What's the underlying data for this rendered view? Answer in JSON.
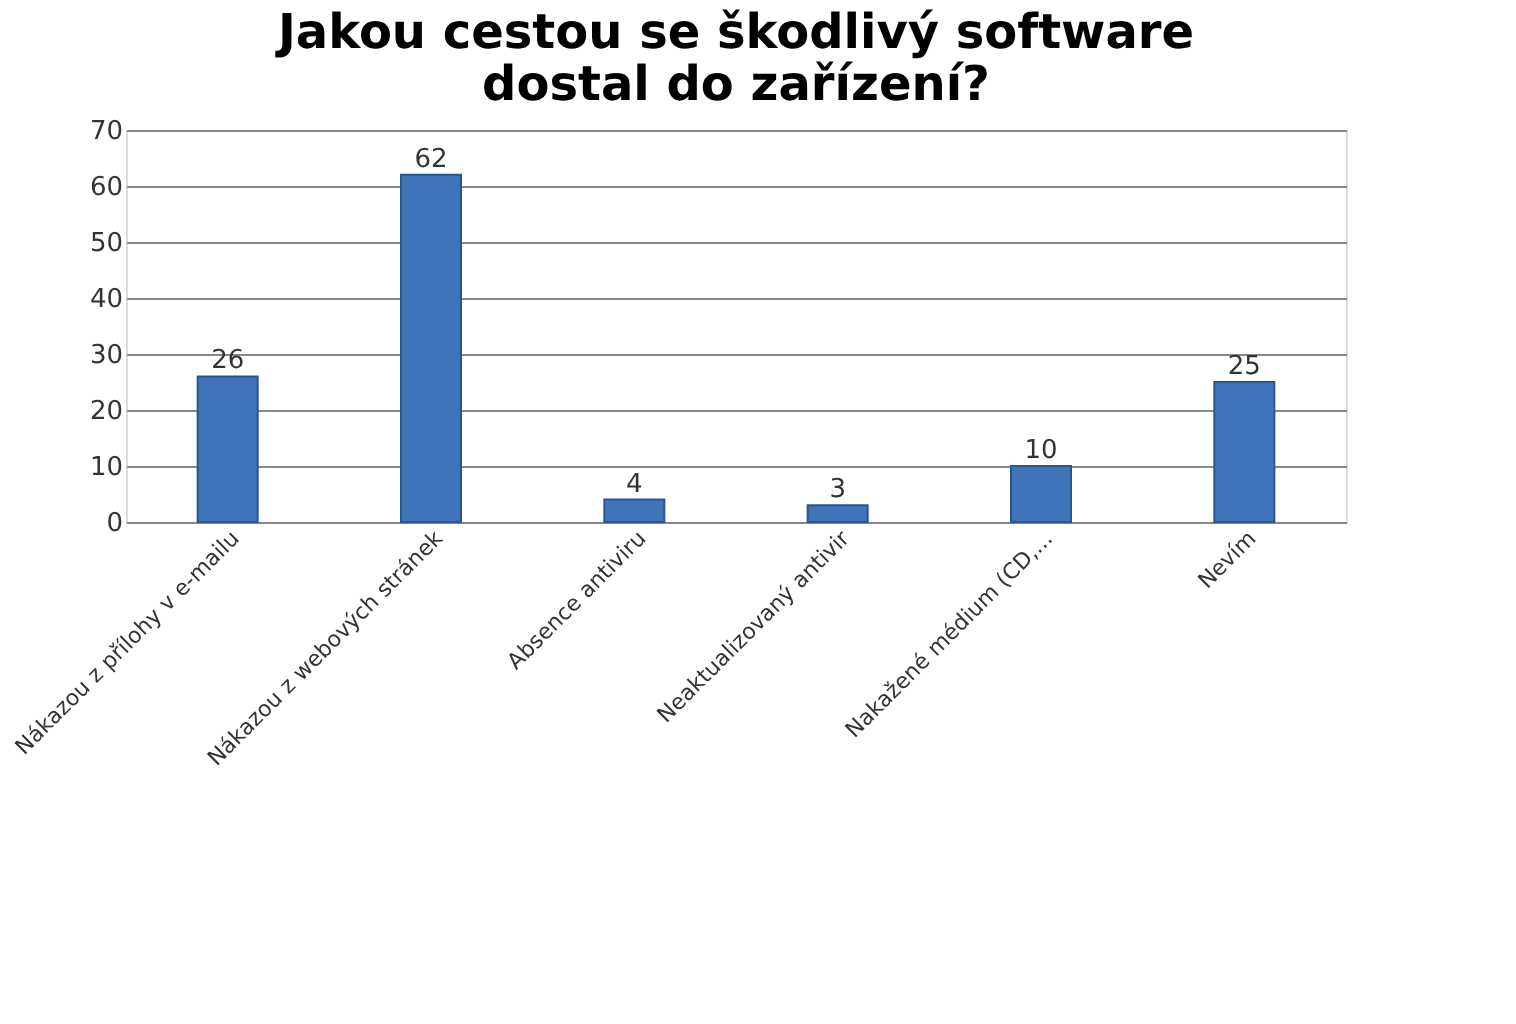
{
  "chart_data": {
    "type": "bar",
    "title": [
      "Jakou cestou se škodlivý software",
      "dostal do zařízení?"
    ],
    "categories": [
      "Nákazou z přílohy v e-mailu",
      "Nákazou z webových stránek",
      "Absence antiviru",
      "Neaktualizovaný antivir",
      "Nakažené médium (CD,...",
      "Nevím"
    ],
    "values": [
      26,
      62,
      4,
      3,
      10,
      25
    ],
    "color": "#3f74bb",
    "ylim": [
      0,
      70
    ],
    "yticks": [
      0,
      10,
      20,
      30,
      40,
      50,
      60,
      70
    ],
    "grid": "y",
    "data_labels": true
  }
}
